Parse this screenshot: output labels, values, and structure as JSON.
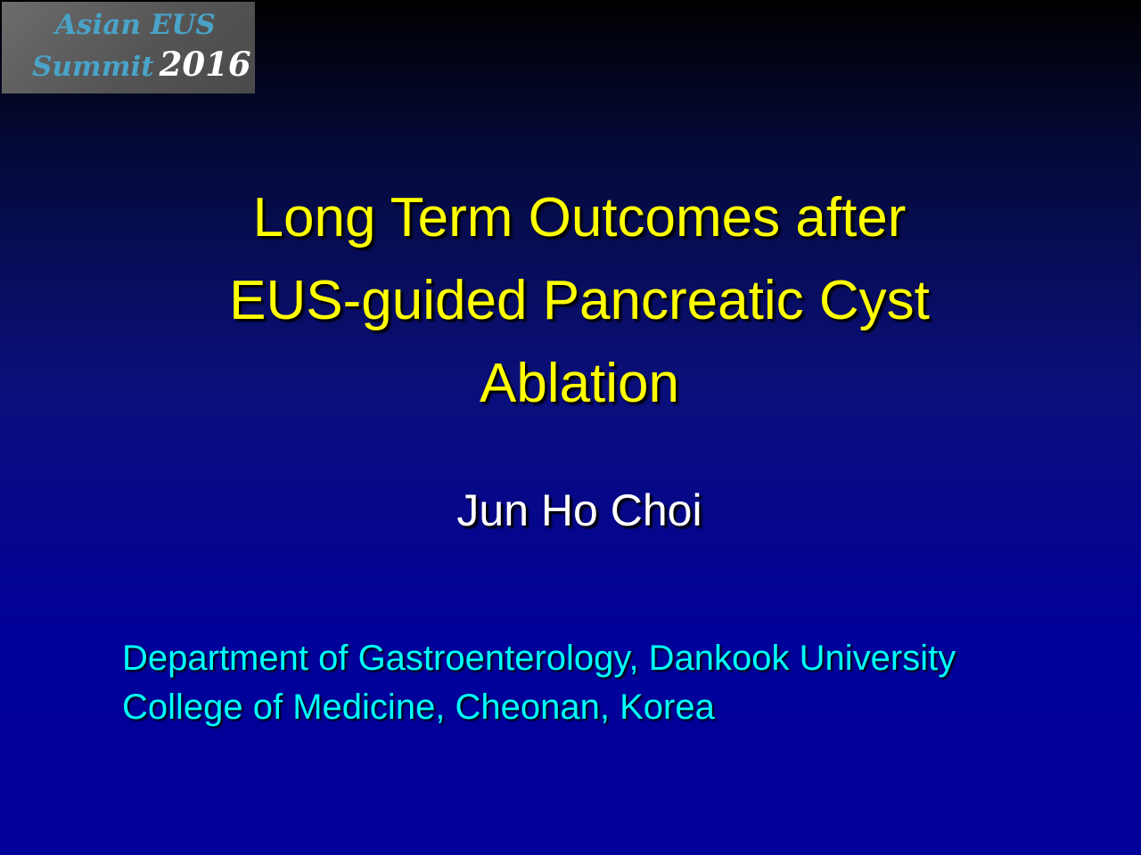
{
  "logo": {
    "line1": "Asian EUS",
    "line2_word": "Summit",
    "line2_year": "2016"
  },
  "title": {
    "lines": [
      "Long Term Outcomes after",
      "EUS-guided Pancreatic Cyst",
      "Ablation"
    ]
  },
  "author": "Jun Ho Choi",
  "affiliation": {
    "lines": [
      "Department of Gastroenterology, Dankook University",
      "College of Medicine, Cheonan, Korea"
    ]
  },
  "colors": {
    "title": "#ffff00",
    "author": "#ffffff",
    "affiliation": "#00ffff",
    "background_top": "#000000",
    "background_bottom": "#000098",
    "logo_text": "#4aa3c8"
  }
}
